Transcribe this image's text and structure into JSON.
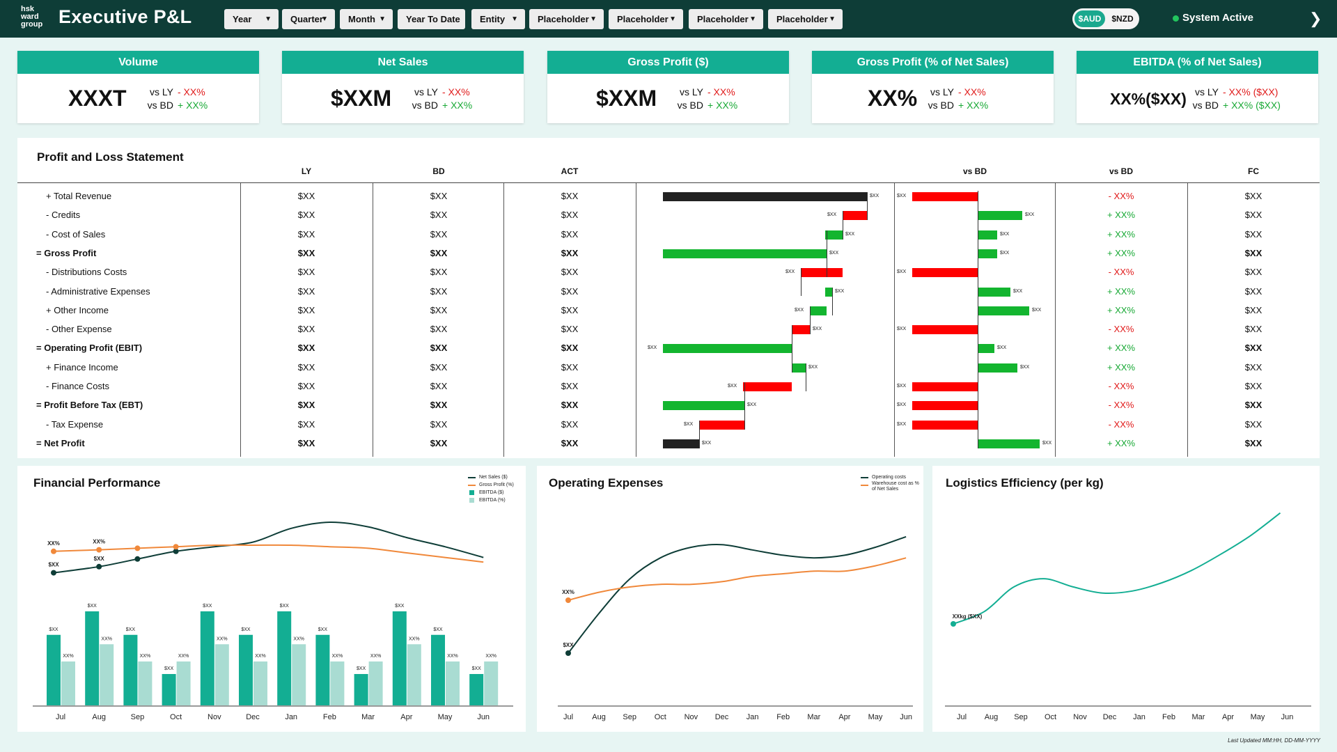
{
  "header": {
    "logo": [
      "hsk",
      "ward",
      "group"
    ],
    "title": "Executive P&L",
    "filters": [
      "Year",
      "Quarter",
      "Month",
      "Year To Date",
      "Entity",
      "Placeholder",
      "Placeholder",
      "Placeholder",
      "Placeholder"
    ],
    "currency": {
      "active": "$AUD",
      "inactive": "$NZD"
    },
    "status": "System Active"
  },
  "kpis": [
    {
      "title": "Volume",
      "value": "XXXT",
      "ly_label": "vs LY",
      "ly": "- XX%",
      "bd_label": "vs BD",
      "bd": "+ XX%"
    },
    {
      "title": "Net Sales",
      "value": "$XXM",
      "ly_label": "vs LY",
      "ly": "- XX%",
      "bd_label": "vs BD",
      "bd": "+ XX%"
    },
    {
      "title": "Gross Profit ($)",
      "value": "$XXM",
      "ly_label": "vs LY",
      "ly": "- XX%",
      "bd_label": "vs BD",
      "bd": "+ XX%"
    },
    {
      "title": "Gross Profit (% of Net Sales)",
      "value": "XX%",
      "ly_label": "vs LY",
      "ly": "- XX%",
      "bd_label": "vs BD",
      "bd": "+ XX%"
    },
    {
      "title": "EBITDA (% of Net Sales)",
      "value": "XX%($XX)",
      "ly_label": "vs LY",
      "ly": "- XX% ($XX)",
      "bd_label": "vs BD",
      "bd": "+ XX% ($XX)"
    }
  ],
  "pl": {
    "title": "Profit and Loss Statement",
    "columns": {
      "ly": "LY",
      "bd": "BD",
      "act": "ACT",
      "vsbd_chart": "vs BD",
      "vsbd": "vs BD",
      "fc": "FC"
    },
    "rows": [
      {
        "label": "+ Total Revenue",
        "bold": false,
        "ly": "$XX",
        "bd": "$XX",
        "act": "$XX",
        "vsbd": "- XX%",
        "sign": "neg",
        "fc": "$XX"
      },
      {
        "label": "- Credits",
        "bold": false,
        "ly": "$XX",
        "bd": "$XX",
        "act": "$XX",
        "vsbd": "+ XX%",
        "sign": "pos",
        "fc": "$XX"
      },
      {
        "label": "- Cost of Sales",
        "bold": false,
        "ly": "$XX",
        "bd": "$XX",
        "act": "$XX",
        "vsbd": "+ XX%",
        "sign": "pos",
        "fc": "$XX"
      },
      {
        "label": "= Gross Profit",
        "bold": true,
        "ly": "$XX",
        "bd": "$XX",
        "act": "$XX",
        "vsbd": "+ XX%",
        "sign": "pos",
        "fc": "$XX"
      },
      {
        "label": "- Distributions Costs",
        "bold": false,
        "ly": "$XX",
        "bd": "$XX",
        "act": "$XX",
        "vsbd": "- XX%",
        "sign": "neg",
        "fc": "$XX"
      },
      {
        "label": "- Administrative Expenses",
        "bold": false,
        "ly": "$XX",
        "bd": "$XX",
        "act": "$XX",
        "vsbd": "+ XX%",
        "sign": "pos",
        "fc": "$XX"
      },
      {
        "label": "+ Other Income",
        "bold": false,
        "ly": "$XX",
        "bd": "$XX",
        "act": "$XX",
        "vsbd": "+ XX%",
        "sign": "pos",
        "fc": "$XX"
      },
      {
        "label": "- Other Expense",
        "bold": false,
        "ly": "$XX",
        "bd": "$XX",
        "act": "$XX",
        "vsbd": "- XX%",
        "sign": "neg",
        "fc": "$XX"
      },
      {
        "label": "= Operating Profit (EBIT)",
        "bold": true,
        "ly": "$XX",
        "bd": "$XX",
        "act": "$XX",
        "vsbd": "+ XX%",
        "sign": "pos",
        "fc": "$XX"
      },
      {
        "label": "+ Finance Income",
        "bold": false,
        "ly": "$XX",
        "bd": "$XX",
        "act": "$XX",
        "vsbd": "+ XX%",
        "sign": "pos",
        "fc": "$XX"
      },
      {
        "label": "- Finance Costs",
        "bold": false,
        "ly": "$XX",
        "bd": "$XX",
        "act": "$XX",
        "vsbd": "- XX%",
        "sign": "neg",
        "fc": "$XX"
      },
      {
        "label": "= Profit Before Tax (EBT)",
        "bold": true,
        "ly": "$XX",
        "bd": "$XX",
        "act": "$XX",
        "vsbd": "- XX%",
        "sign": "neg",
        "fc": "$XX"
      },
      {
        "label": "- Tax Expense",
        "bold": false,
        "ly": "$XX",
        "bd": "$XX",
        "act": "$XX",
        "vsbd": "- XX%",
        "sign": "neg",
        "fc": "$XX"
      },
      {
        "label": "= Net Profit",
        "bold": true,
        "ly": "$XX",
        "bd": "$XX",
        "act": "$XX",
        "vsbd": "+ XX%",
        "sign": "pos",
        "fc": "$XX"
      }
    ],
    "bar_label": "$XX"
  },
  "chart_data": [
    {
      "type": "bar",
      "title": "Financial Performance",
      "categories": [
        "Jul",
        "Aug",
        "Sep",
        "Oct",
        "Nov",
        "Dec",
        "Jan",
        "Feb",
        "Mar",
        "Apr",
        "May",
        "Jun"
      ],
      "series": [
        {
          "name": "Net Sales ($)",
          "kind": "line",
          "color": "#0e3d37",
          "values": [
            62,
            66,
            71,
            76,
            79,
            82,
            91,
            95,
            92,
            85,
            79,
            72
          ]
        },
        {
          "name": "Gross Profit (%)",
          "kind": "line",
          "color": "#f0883a",
          "values": [
            76,
            77,
            78,
            79,
            80,
            80,
            80,
            79,
            78,
            75,
            72,
            69
          ]
        },
        {
          "name": "EBITDA ($)",
          "kind": "bar",
          "color": "#13ae93",
          "values": [
            45,
            60,
            45,
            20,
            60,
            45,
            60,
            45,
            20,
            60,
            45,
            20
          ]
        },
        {
          "name": "EBITDA (%)",
          "kind": "bar",
          "color": "#a9dcd2",
          "values": [
            28,
            39,
            28,
            28,
            39,
            28,
            39,
            28,
            28,
            39,
            28,
            28
          ]
        }
      ],
      "data_label_value": "$XX",
      "data_label_pct": "XX%",
      "legend": "top-right"
    },
    {
      "type": "line",
      "title": "Operating Expenses",
      "categories": [
        "Jul",
        "Aug",
        "Sep",
        "Oct",
        "Nov",
        "Dec",
        "Jan",
        "Feb",
        "Mar",
        "Apr",
        "May",
        "Jun"
      ],
      "series": [
        {
          "name": "Operating costs",
          "color": "#0e3d37",
          "values": [
            20,
            35,
            48,
            56,
            60,
            61,
            59,
            57,
            56,
            57,
            60,
            64
          ]
        },
        {
          "name": "Warehouse cost as % of Net Sales",
          "color": "#f0883a",
          "values": [
            40,
            43,
            45,
            46,
            46,
            47,
            49,
            50,
            51,
            51,
            53,
            56
          ]
        }
      ],
      "data_label_value": "$XX",
      "data_label_pct": "XX%",
      "legend": "top-right"
    },
    {
      "type": "line",
      "title": "Logistics Efficiency (per kg)",
      "categories": [
        "Jul",
        "Aug",
        "Sep",
        "Oct",
        "Nov",
        "Dec",
        "Jan",
        "Feb",
        "Mar",
        "Apr",
        "May",
        "Jun"
      ],
      "series": [
        {
          "name": "",
          "color": "#13ae93",
          "values": [
            40,
            46,
            58,
            62,
            58,
            55,
            56,
            60,
            66,
            74,
            83,
            94
          ]
        }
      ],
      "data_label": "XXkg ($XX)"
    }
  ],
  "footer": "Last Updated MM:HH, DD-MM-YYYY"
}
